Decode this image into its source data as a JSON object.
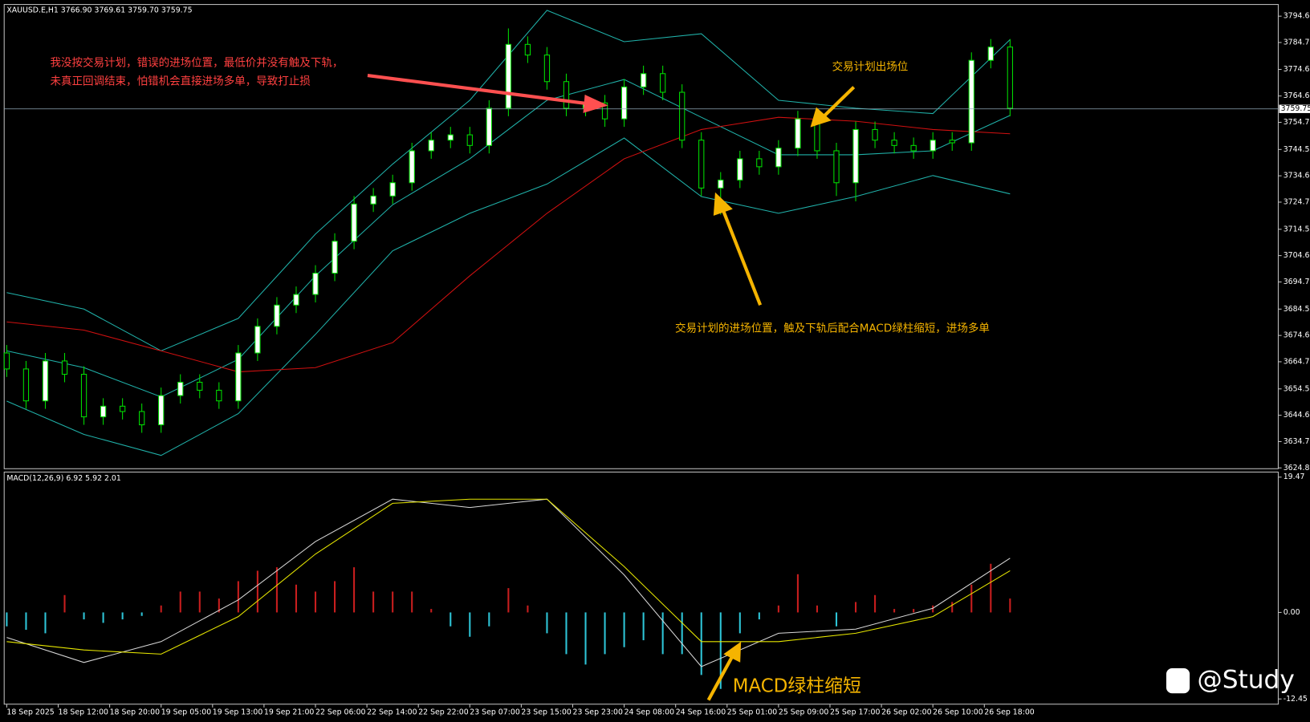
{
  "chart_data": [
    {
      "type": "candlestick",
      "label": "XAUUSD.E,H1  3766.90 3769.61 3759.70 3759.75",
      "x": [
        0,
        3,
        6,
        9,
        12,
        15,
        18,
        21,
        24,
        27,
        30,
        33,
        36,
        39,
        42,
        45,
        48,
        51,
        54,
        57,
        60,
        63,
        66,
        69,
        72,
        75,
        78,
        81,
        84,
        87,
        90,
        93,
        96,
        99,
        102,
        105,
        108,
        111,
        114,
        117,
        120,
        123,
        126,
        129,
        132,
        135,
        138,
        141,
        144,
        147,
        150,
        153,
        156
      ],
      "open": [
        3668,
        3662,
        3650,
        3665,
        3660,
        3644,
        3648,
        3646,
        3641,
        3652,
        3657,
        3654,
        3650,
        3668,
        3678,
        3686,
        3690,
        3698,
        3710,
        3724,
        3727,
        3732,
        3744,
        3748,
        3750,
        3746,
        3760,
        3784,
        3780,
        3770,
        3760,
        3762,
        3756,
        3768,
        3773,
        3766,
        3748,
        3730,
        3733,
        3741,
        3738,
        3745,
        3756,
        3744,
        3732,
        3752,
        3748,
        3746,
        3744,
        3748,
        3747,
        3778,
        3783
      ],
      "high": [
        3671,
        3665,
        3668,
        3668,
        3663,
        3651,
        3651,
        3649,
        3655,
        3660,
        3660,
        3657,
        3671,
        3681,
        3689,
        3693,
        3701,
        3713,
        3727,
        3730,
        3735,
        3747,
        3751,
        3753,
        3753,
        3763,
        3790,
        3787,
        3783,
        3773,
        3765,
        3765,
        3771,
        3776,
        3776,
        3769,
        3751,
        3736,
        3744,
        3744,
        3748,
        3759,
        3759,
        3747,
        3755,
        3755,
        3751,
        3749,
        3751,
        3751,
        3781,
        3786,
        3786
      ],
      "low": [
        3659,
        3647,
        3647,
        3657,
        3641,
        3641,
        3643,
        3638,
        3638,
        3649,
        3651,
        3647,
        3647,
        3665,
        3675,
        3683,
        3687,
        3695,
        3707,
        3721,
        3724,
        3729,
        3741,
        3745,
        3743,
        3743,
        3757,
        3777,
        3767,
        3757,
        3757,
        3753,
        3753,
        3765,
        3763,
        3745,
        3727,
        3720,
        3730,
        3735,
        3735,
        3742,
        3741,
        3727,
        3725,
        3745,
        3743,
        3741,
        3741,
        3744,
        3744,
        3775,
        3757
      ],
      "close": [
        3662,
        3650,
        3665,
        3660,
        3644,
        3648,
        3646,
        3641,
        3652,
        3657,
        3654,
        3650,
        3668,
        3678,
        3686,
        3690,
        3698,
        3710,
        3724,
        3727,
        3732,
        3744,
        3748,
        3750,
        3746,
        3760,
        3784,
        3780,
        3770,
        3760,
        3762,
        3756,
        3768,
        3773,
        3766,
        3748,
        3730,
        3733,
        3741,
        3738,
        3745,
        3756,
        3744,
        3732,
        3752,
        3748,
        3746,
        3744,
        3748,
        3747,
        3778,
        3783,
        3760
      ],
      "up_color": "#ffffff",
      "down_color": "#000000",
      "outline_color": "#00e000",
      "line_x": [
        0,
        12,
        24,
        36,
        48,
        60,
        72,
        84,
        96,
        108,
        120,
        132,
        144,
        156
      ],
      "lines": [
        {
          "color": "#20b2aa",
          "values": [
            3690.7,
            3684.5,
            3668.8,
            3681,
            3712.7,
            3739,
            3763,
            3796.8,
            3785,
            3788,
            3763,
            3760,
            3758,
            3785.8
          ]
        },
        {
          "color": "#20b2aa",
          "values": [
            3668.8,
            3662.5,
            3651.5,
            3665.6,
            3697,
            3723.7,
            3741,
            3763,
            3770.8,
            3756.6,
            3742.5,
            3742.5,
            3744,
            3757.3
          ]
        },
        {
          "color": "#20b2aa",
          "values": [
            3649.9,
            3637.4,
            3629.5,
            3645.2,
            3675,
            3706.4,
            3720.5,
            3731.5,
            3748.8,
            3726.8,
            3720.5,
            3726.8,
            3734.7,
            3727.8
          ]
        },
        {
          "color": "#d01010",
          "values": [
            3679.7,
            3676.6,
            3668.8,
            3660.9,
            3662.5,
            3671.9,
            3697,
            3720.5,
            3741,
            3752,
            3756.6,
            3755.1,
            3752,
            3750.4
          ]
        }
      ],
      "current_price": 3759.75,
      "xlim": [
        -0.4,
        197.7
      ],
      "xticks": [
        {
          "value": 0,
          "label": "18 Sep 2025"
        },
        {
          "value": 8,
          "label": "18 Sep 12:00"
        },
        {
          "value": 16,
          "label": "18 Sep 20:00"
        },
        {
          "value": 24,
          "label": "19 Sep 05:00"
        },
        {
          "value": 32,
          "label": "19 Sep 13:00"
        },
        {
          "value": 40,
          "label": "19 Sep 21:00"
        },
        {
          "value": 48,
          "label": "22 Sep 06:00"
        },
        {
          "value": 56,
          "label": "22 Sep 14:00"
        },
        {
          "value": 64,
          "label": "22 Sep 22:00"
        },
        {
          "value": 72,
          "label": "23 Sep 07:00"
        },
        {
          "value": 80,
          "label": "23 Sep 15:00"
        },
        {
          "value": 88,
          "label": "23 Sep 23:00"
        },
        {
          "value": 96,
          "label": "24 Sep 08:00"
        },
        {
          "value": 104,
          "label": "24 Sep 16:00"
        },
        {
          "value": 112,
          "label": "25 Sep 01:00"
        },
        {
          "value": 120,
          "label": "25 Sep 09:00"
        },
        {
          "value": 128,
          "label": "25 Sep 17:00"
        },
        {
          "value": 136,
          "label": "26 Sep 02:00"
        },
        {
          "value": 144,
          "label": "26 Sep 10:00"
        },
        {
          "value": 152,
          "label": "26 Sep 18:00"
        }
      ],
      "ylim": [
        3624.5,
        3799.0
      ],
      "yticks": [
        {
          "value": 3794.6,
          "label": "3794.60"
        },
        {
          "value": 3784.7,
          "label": "3784.70"
        },
        {
          "value": 3774.6,
          "label": "3774.60"
        },
        {
          "value": 3764.6,
          "label": "3764.60"
        },
        {
          "value": 3754.7,
          "label": "3754.70"
        },
        {
          "value": 3744.5,
          "label": "3744.50"
        },
        {
          "value": 3734.6,
          "label": "3734.60"
        },
        {
          "value": 3724.7,
          "label": "3724.70"
        },
        {
          "value": 3714.5,
          "label": "3714.50"
        },
        {
          "value": 3704.6,
          "label": "3704.60"
        },
        {
          "value": 3694.7,
          "label": "3694.70"
        },
        {
          "value": 3684.5,
          "label": "3684.50"
        },
        {
          "value": 3674.6,
          "label": "3674.60"
        },
        {
          "value": 3664.7,
          "label": "3664.70"
        },
        {
          "value": 3654.5,
          "label": "3654.50"
        },
        {
          "value": 3644.6,
          "label": "3644.60"
        },
        {
          "value": 3634.7,
          "label": "3634.70"
        },
        {
          "value": 3624.8,
          "label": "3624.80"
        }
      ]
    },
    {
      "type": "macd",
      "label": "MACD(12,26,9) 6.92 5.92 2.01",
      "x": [
        0,
        3,
        6,
        9,
        12,
        15,
        18,
        21,
        24,
        27,
        30,
        33,
        36,
        39,
        42,
        45,
        48,
        51,
        54,
        57,
        60,
        63,
        66,
        69,
        72,
        75,
        78,
        81,
        84,
        87,
        90,
        93,
        96,
        99,
        102,
        105,
        108,
        111,
        114,
        117,
        120,
        123,
        126,
        129,
        132,
        135,
        138,
        141,
        144,
        147,
        150,
        153,
        156
      ],
      "histogram": [
        -2,
        -2.5,
        -3,
        2.5,
        -1,
        -1.5,
        -1,
        -0.5,
        1,
        3,
        3,
        2,
        4.5,
        6,
        6.5,
        4,
        3,
        4.5,
        6.5,
        3,
        3,
        3,
        0.5,
        -2,
        -3.5,
        -2,
        3.5,
        1,
        -3,
        -6,
        -7.5,
        -6,
        -5,
        -4,
        -6,
        -6,
        -9,
        -11,
        -3,
        -1,
        1,
        5.5,
        1,
        -2,
        1.5,
        2.5,
        0.5,
        0.5,
        1,
        1.5,
        4,
        7,
        2
      ],
      "up_color": "#c81e1e",
      "down_color": "#2ec4d6",
      "line_x": [
        0,
        12,
        24,
        36,
        48,
        60,
        72,
        84,
        96,
        108,
        120,
        132,
        144,
        156
      ],
      "macd": {
        "color": "#d8d8d8",
        "values": [
          -3.6,
          -7.2,
          -4.2,
          1.8,
          10.2,
          16.3,
          15.1,
          16.3,
          5.4,
          -7.8,
          -3.0,
          -2.4,
          0.6,
          7.8
        ]
      },
      "signal": {
        "color": "#e6e600",
        "values": [
          -4.2,
          -5.4,
          -6.0,
          -0.6,
          8.4,
          15.7,
          16.3,
          16.3,
          6.6,
          -4.2,
          -4.2,
          -3.0,
          -0.6,
          6.0
        ]
      },
      "xlim": [
        -0.4,
        197.7
      ],
      "ylim": [
        -13.2,
        20.2
      ],
      "yticks": [
        19.47,
        {
          "value": 0,
          "label": "0.00"
        },
        -12.45
      ]
    }
  ],
  "annotations": {
    "wrong_entry_1": "我没按交易计划，错误的进场位置，最低价并没有触及下轨，",
    "wrong_entry_2": "未真正回调结束，怕错机会直接进场多单，导致打止损",
    "exit": "交易计划出场位",
    "planned_entry": "交易计划的进场位置，触及下轨后配合MACD绿柱缩短，进场多单",
    "macd_note": "MACD绿柱缩短",
    "watermark": "@Study"
  }
}
